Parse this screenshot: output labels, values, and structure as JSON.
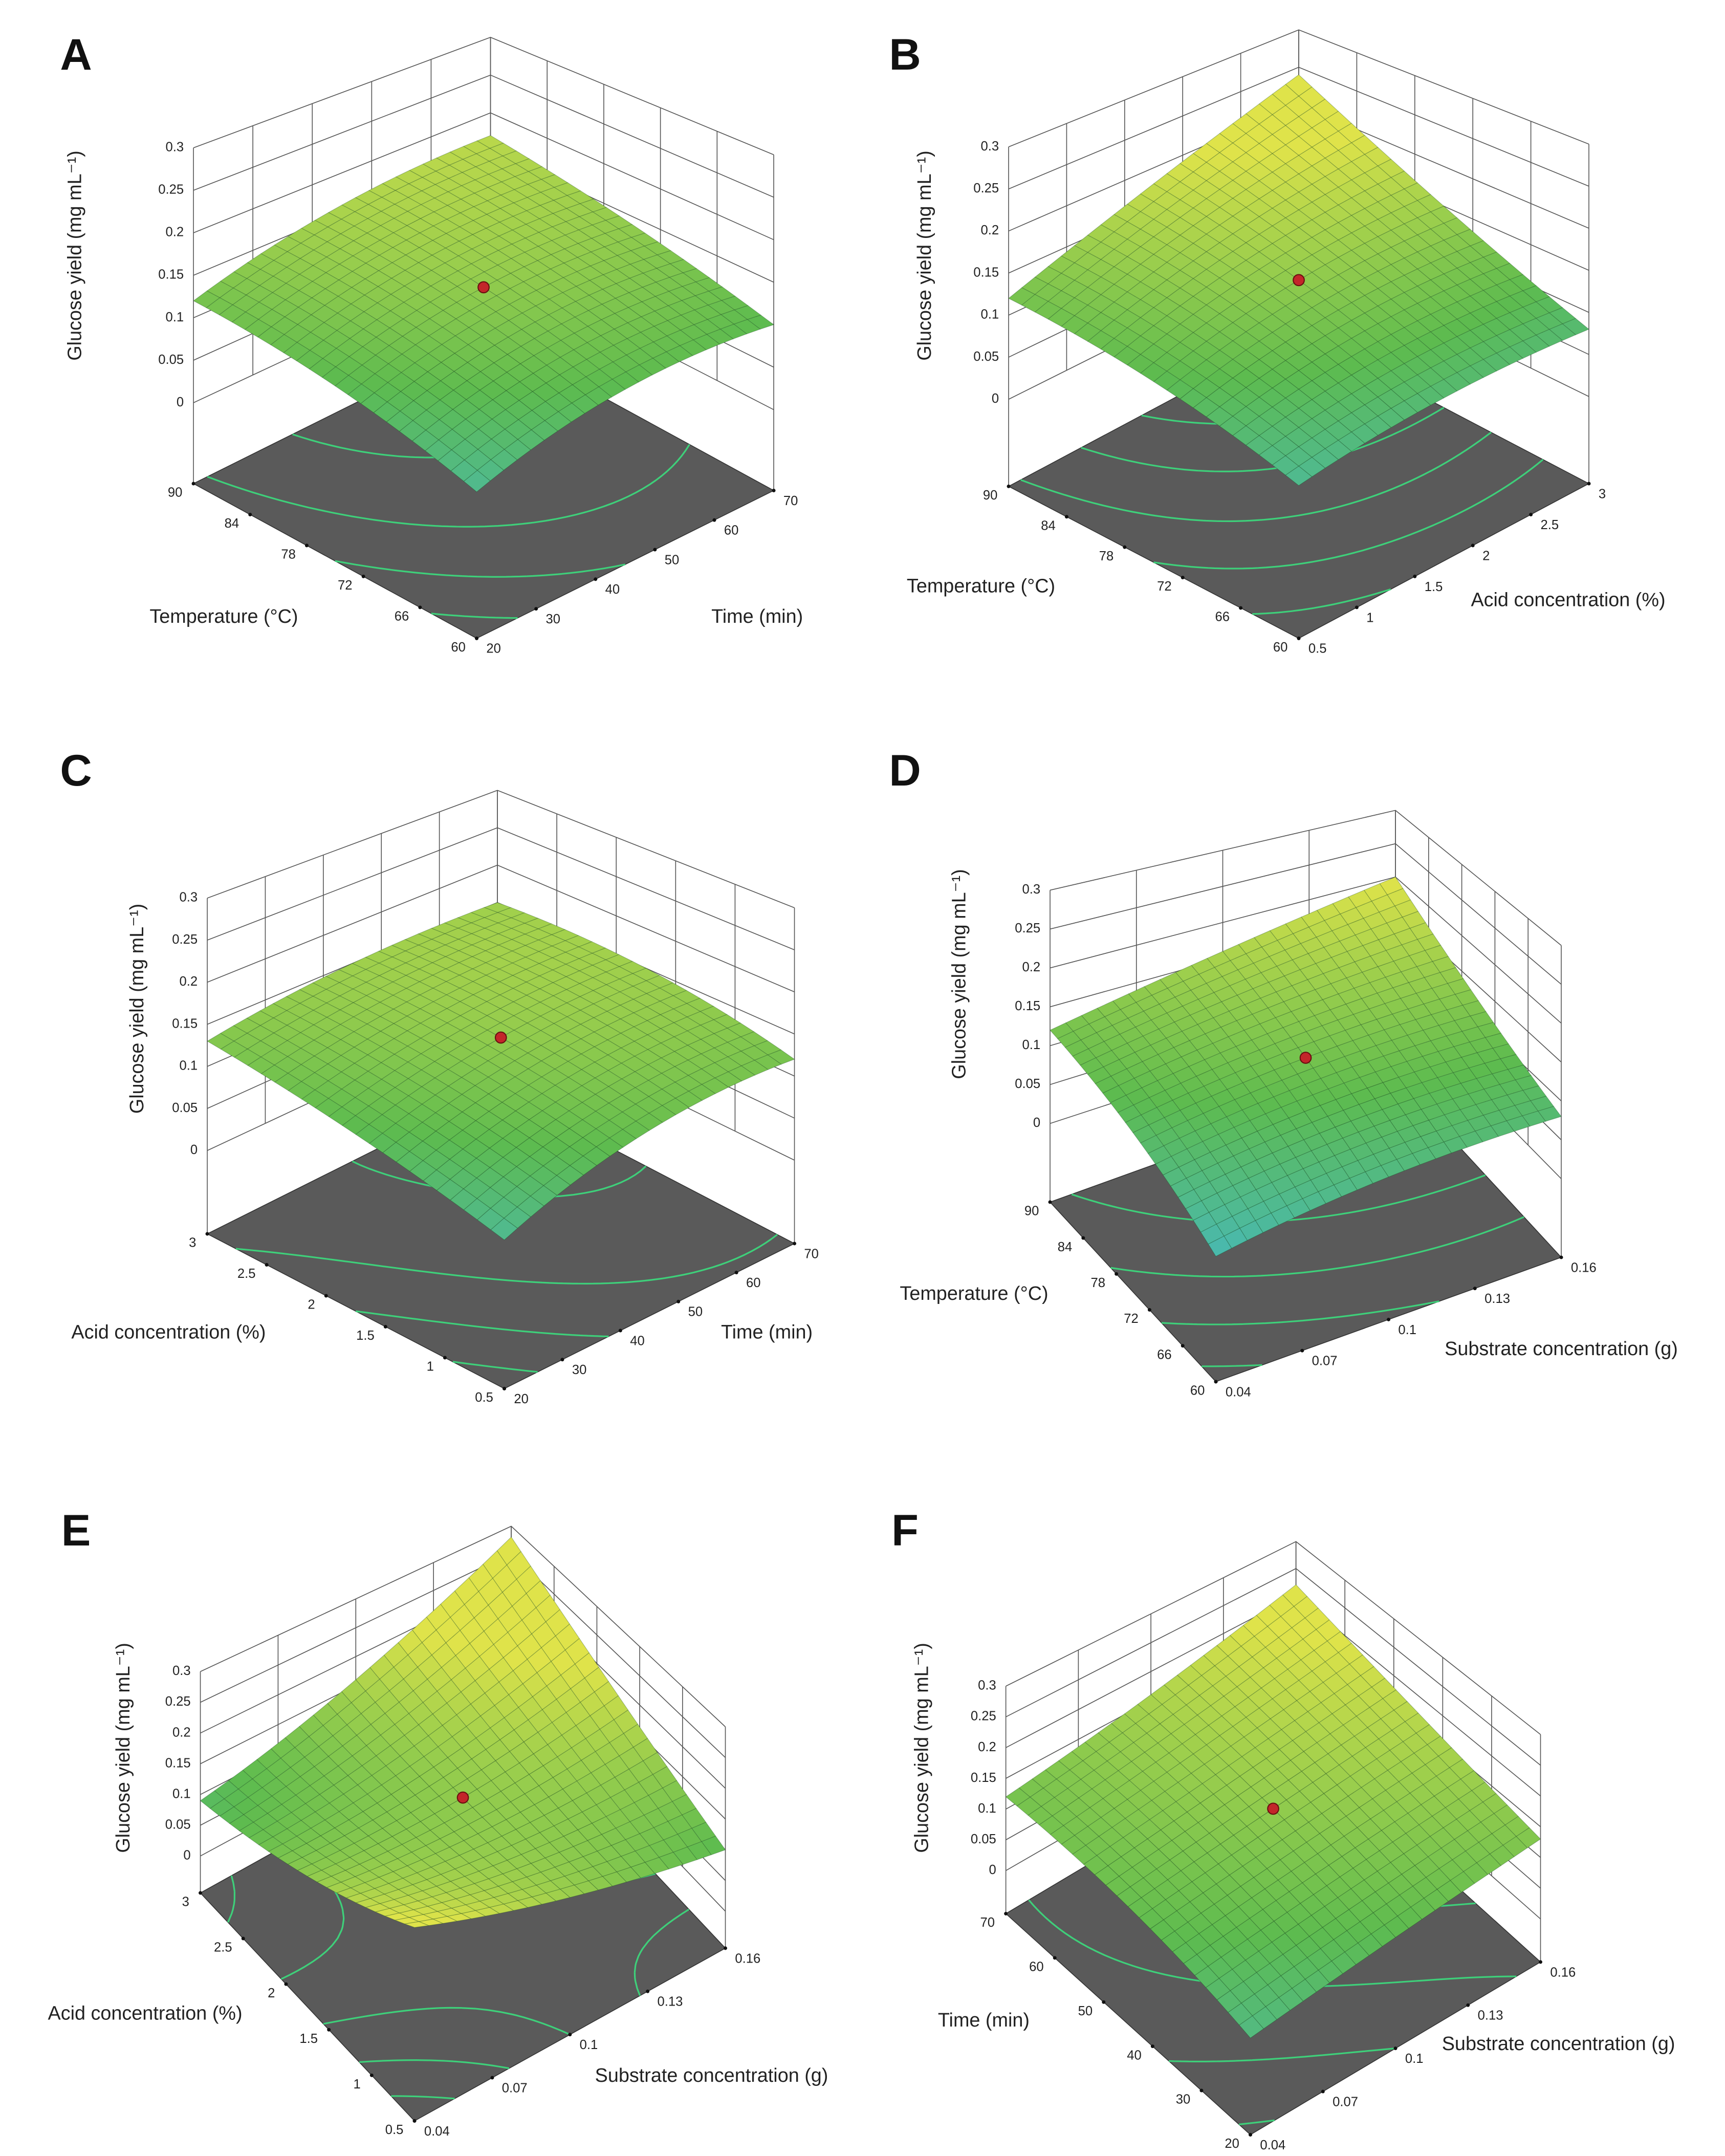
{
  "chart_data": [
    {
      "type": "surface",
      "panel": "A",
      "xlabel": "Temperature (°C)",
      "ylabel": "Time (min)",
      "zlabel": "Glucose yield (mg mL⁻¹)",
      "xlim": [
        60,
        90
      ],
      "xticks": [
        60,
        66,
        72,
        78,
        84,
        90
      ],
      "ylim": [
        20,
        70
      ],
      "yticks": [
        20,
        30,
        40,
        50,
        60,
        70
      ],
      "zlim": [
        0,
        0.3
      ],
      "zticks": [
        0,
        0.05,
        0.1,
        0.15,
        0.2,
        0.25,
        0.3
      ],
      "z": [
        [
          0.06,
          0.1,
          0.1
        ],
        [
          0.1,
          0.14,
          0.14
        ],
        [
          0.12,
          0.16,
          0.17
        ]
      ],
      "point": 0.14,
      "colors": [
        "#3fb8e2",
        "#5dbb4f",
        "#dfe34a"
      ]
    },
    {
      "type": "surface",
      "panel": "B",
      "xlabel": "Temperature (°C)",
      "ylabel": "Acid concentration (%)",
      "zlabel": "Glucose yield (mg mL⁻¹)",
      "xlim": [
        60,
        90
      ],
      "xticks": [
        60,
        66,
        72,
        78,
        84,
        90
      ],
      "ylim": [
        0.5,
        3
      ],
      "yticks": [
        0.5,
        1,
        1.5,
        2,
        2.5,
        3
      ],
      "zlim": [
        0,
        0.3
      ],
      "zticks": [
        0,
        0.05,
        0.1,
        0.15,
        0.2,
        0.25,
        0.3
      ],
      "z": [
        [
          0.06,
          0.08,
          0.08
        ],
        [
          0.1,
          0.14,
          0.15
        ],
        [
          0.12,
          0.18,
          0.24
        ]
      ],
      "point": 0.14,
      "colors": [
        "#3fb8e2",
        "#5dbb4f",
        "#dfe34a"
      ]
    },
    {
      "type": "surface",
      "panel": "C",
      "xlabel": "Acid concentration (%)",
      "ylabel": "Time (min)",
      "zlabel": "Glucose yield (mg mL⁻¹)",
      "xlim": [
        0.5,
        3
      ],
      "xticks": [
        0.5,
        1,
        1.5,
        2,
        2.5,
        3
      ],
      "ylim": [
        20,
        70
      ],
      "yticks": [
        20,
        30,
        40,
        50,
        60,
        70
      ],
      "zlim": [
        0,
        0.3
      ],
      "zticks": [
        0,
        0.05,
        0.1,
        0.15,
        0.2,
        0.25,
        0.3
      ],
      "z": [
        [
          0.06,
          0.11,
          0.12
        ],
        [
          0.1,
          0.14,
          0.15
        ],
        [
          0.13,
          0.15,
          0.15
        ]
      ],
      "point": 0.14,
      "colors": [
        "#3fb8e2",
        "#5dbb4f",
        "#dfe34a"
      ]
    },
    {
      "type": "surface",
      "panel": "D",
      "xlabel": "Temperature (°C)",
      "ylabel": "Substrate concentration (g)",
      "zlabel": "Glucose yield (mg mL⁻¹)",
      "xlim": [
        60,
        90
      ],
      "xticks": [
        60,
        66,
        72,
        78,
        84,
        90
      ],
      "ylim": [
        0.04,
        0.16
      ],
      "yticks": [
        0.04,
        0.07,
        0.1,
        0.13,
        0.16
      ],
      "zlim": [
        0,
        0.3
      ],
      "zticks": [
        0,
        0.05,
        0.1,
        0.15,
        0.2,
        0.25,
        0.3
      ],
      "z": [
        [
          0.04,
          0.07,
          0.08
        ],
        [
          0.09,
          0.12,
          0.13
        ],
        [
          0.12,
          0.16,
          0.2
        ]
      ],
      "point": 0.12,
      "colors": [
        "#3fb8e2",
        "#5dbb4f",
        "#dfe34a"
      ]
    },
    {
      "type": "surface",
      "panel": "E",
      "xlabel": "Acid concentration (%)",
      "ylabel": "Substrate concentration (g)",
      "zlabel": "Glucose yield (mg mL⁻¹)",
      "xlim": [
        0.5,
        3
      ],
      "xticks": [
        0.5,
        1,
        1.5,
        2,
        2.5,
        3
      ],
      "ylim": [
        0.04,
        0.16
      ],
      "yticks": [
        0.04,
        0.07,
        0.1,
        0.13,
        0.16
      ],
      "zlim": [
        0,
        0.3
      ],
      "zticks": [
        0,
        0.05,
        0.1,
        0.15,
        0.2,
        0.25,
        0.3
      ],
      "z": [
        [
          0.22,
          0.15,
          0.1
        ],
        [
          0.14,
          0.14,
          0.18
        ],
        [
          0.09,
          0.16,
          0.28
        ]
      ],
      "point": 0.14,
      "colors": [
        "#3fb8e2",
        "#5dbb4f",
        "#dfe34a"
      ]
    },
    {
      "type": "surface",
      "panel": "F",
      "xlabel": "Time (min)",
      "ylabel": "Substrate concentration (g)",
      "zlabel": "Glucose yield (mg mL⁻¹)",
      "xlim": [
        20,
        70
      ],
      "xticks": [
        20,
        30,
        40,
        50,
        60,
        70
      ],
      "ylim": [
        0.04,
        0.16
      ],
      "yticks": [
        0.04,
        0.07,
        0.1,
        0.13,
        0.16
      ],
      "zlim": [
        0,
        0.3
      ],
      "zticks": [
        0,
        0.05,
        0.1,
        0.15,
        0.2,
        0.25,
        0.3
      ],
      "z": [
        [
          0.07,
          0.1,
          0.13
        ],
        [
          0.11,
          0.14,
          0.17
        ],
        [
          0.12,
          0.16,
          0.22
        ]
      ],
      "point": 0.14,
      "colors": [
        "#3fb8e2",
        "#5dbb4f",
        "#dfe34a"
      ]
    }
  ]
}
